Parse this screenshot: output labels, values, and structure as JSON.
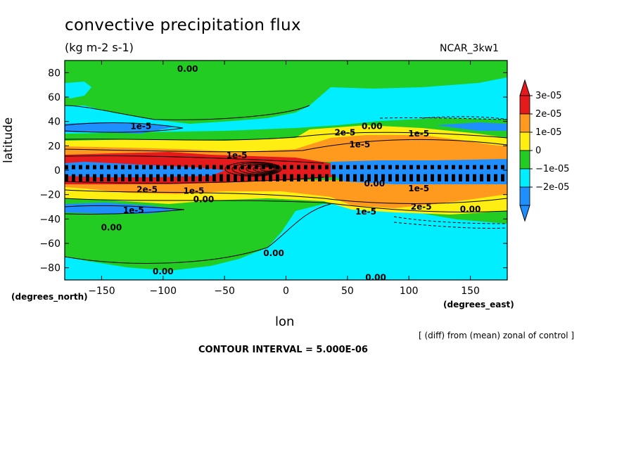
{
  "chart_data": {
    "type": "heatmap",
    "title": "convective precipitation flux",
    "units": "(kg m-2 s-1)",
    "model": "NCAR_3kw1",
    "xlabel": "lon",
    "ylabel": "latitude",
    "x_unit": "(degrees_east)",
    "y_unit": "(degrees_north)",
    "xlim": [
      -180,
      180
    ],
    "ylim": [
      -90,
      90
    ],
    "xticks": [
      -150,
      -100,
      -50,
      0,
      50,
      100,
      150
    ],
    "yticks": [
      80,
      60,
      40,
      20,
      0,
      -20,
      -40,
      -60,
      -80
    ],
    "note": "[ (diff) from (mean) zonal of control ]",
    "contour_interval": "CONTOUR INTERVAL = 5.000E-06",
    "colorbar": {
      "labels": [
        "3e-05",
        "2e-05",
        "1e-05",
        "0",
        "−1e-05",
        "−2e-05"
      ],
      "colors": [
        "#e41a1c",
        "#ff9a1f",
        "#ffee11",
        "#22cc22",
        "#00eeff",
        "#1f8fff"
      ]
    },
    "contour_labels": [
      {
        "text": "0.00",
        "lon": -80,
        "lat": 83
      },
      {
        "text": "1e-5",
        "lon": -118,
        "lat": 36
      },
      {
        "text": "2e-5",
        "lon": 48,
        "lat": 31
      },
      {
        "text": "0.00",
        "lon": 70,
        "lat": 36
      },
      {
        "text": "1e-5",
        "lon": 108,
        "lat": 30
      },
      {
        "text": "1e-5",
        "lon": 60,
        "lat": 21
      },
      {
        "text": "1e-5",
        "lon": -40,
        "lat": 12
      },
      {
        "text": "0.00",
        "lon": 72,
        "lat": -11
      },
      {
        "text": "2e-5",
        "lon": -113,
        "lat": -16
      },
      {
        "text": "1e-5",
        "lon": -75,
        "lat": -17
      },
      {
        "text": "0.00",
        "lon": -67,
        "lat": -24
      },
      {
        "text": "1e-5",
        "lon": 108,
        "lat": -15
      },
      {
        "text": "2e-5",
        "lon": 110,
        "lat": -30
      },
      {
        "text": "1e-5",
        "lon": 65,
        "lat": -34
      },
      {
        "text": "0.00",
        "lon": 150,
        "lat": -32
      },
      {
        "text": "1e-5",
        "lon": -124,
        "lat": -33
      },
      {
        "text": "0.00",
        "lon": -142,
        "lat": -47
      },
      {
        "text": "0.00",
        "lon": -10,
        "lat": -68
      },
      {
        "text": "0.00",
        "lon": -100,
        "lat": -83
      },
      {
        "text": "0.00",
        "lon": 73,
        "lat": -88
      }
    ]
  }
}
